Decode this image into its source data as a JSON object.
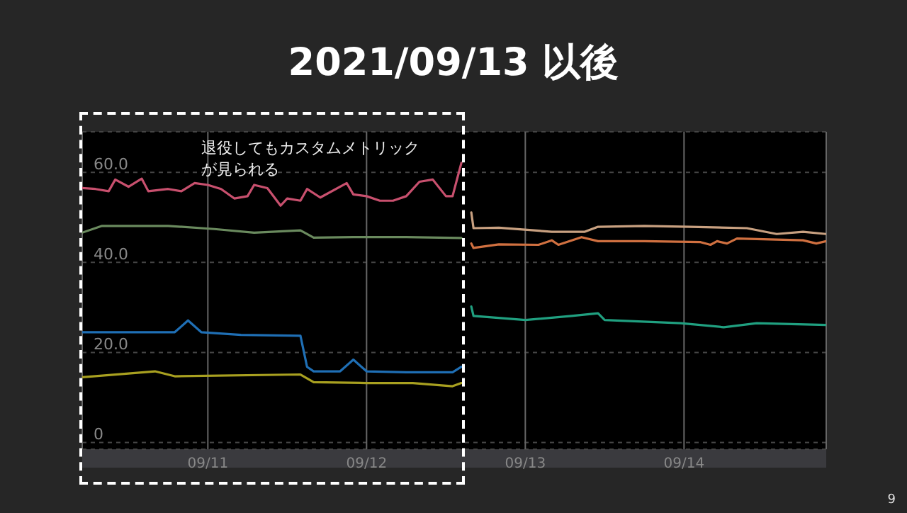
{
  "chart_data": {
    "type": "line",
    "title": "2021/09/13 以後",
    "annotations": [
      "退役してもカスタムメトリックが見られる",
      "9"
    ],
    "xlim": [
      "2021-09-10T05:00",
      "2021-09-14T21:30"
    ],
    "xticks": [
      {
        "value": "2021-09-11",
        "label": "09/11"
      },
      {
        "value": "2021-09-12",
        "label": "09/12"
      },
      {
        "value": "2021-09-13",
        "label": "09/13"
      },
      {
        "value": "2021-09-14",
        "label": "09/14"
      }
    ],
    "ylim": [
      -1.5,
      69
    ],
    "yticks": [
      {
        "value": 0,
        "label": "0"
      },
      {
        "value": 20,
        "label": "20.0"
      },
      {
        "value": 40,
        "label": "40.0"
      },
      {
        "value": 60,
        "label": "60.0"
      }
    ],
    "grid": true,
    "series": [
      {
        "color": "#c8506e",
        "x": [
          "2021-09-10T05:00",
          "2021-09-10T07:00",
          "2021-09-10T09:00",
          "2021-09-10T10:00",
          "2021-09-10T12:00",
          "2021-09-10T14:00",
          "2021-09-10T15:00",
          "2021-09-10T18:00",
          "2021-09-10T20:00",
          "2021-09-10T22:00",
          "2021-09-11T00:00",
          "2021-09-11T02:00",
          "2021-09-11T04:00",
          "2021-09-11T06:00",
          "2021-09-11T07:00",
          "2021-09-11T09:00",
          "2021-09-11T11:00",
          "2021-09-11T12:00",
          "2021-09-11T14:00",
          "2021-09-11T15:00",
          "2021-09-11T17:00",
          "2021-09-11T21:00",
          "2021-09-11T22:00",
          "2021-09-12T00:00",
          "2021-09-12T02:00",
          "2021-09-12T04:00",
          "2021-09-12T06:00",
          "2021-09-12T08:00",
          "2021-09-12T10:00",
          "2021-09-12T12:00",
          "2021-09-12T13:00",
          "2021-09-12T14:20"
        ],
        "values": [
          56.5,
          56.3,
          55.8,
          58.4,
          56.8,
          58.6,
          55.8,
          56.3,
          55.8,
          57.6,
          57.2,
          56.3,
          54.2,
          54.7,
          57.2,
          56.5,
          52.6,
          54.2,
          53.7,
          56.3,
          54.4,
          57.6,
          55.1,
          54.7,
          53.7,
          53.7,
          54.7,
          57.9,
          58.4,
          54.7,
          54.7,
          62.1
        ]
      },
      {
        "color": "#6a8a5e",
        "x": [
          "2021-09-10T05:00",
          "2021-09-10T08:00",
          "2021-09-10T14:00",
          "2021-09-10T18:00",
          "2021-09-11T01:00",
          "2021-09-11T07:00",
          "2021-09-11T14:00",
          "2021-09-11T16:00",
          "2021-09-11T22:00",
          "2021-09-12T06:00",
          "2021-09-12T14:20"
        ],
        "values": [
          46.6,
          48.1,
          48.1,
          48.1,
          47.4,
          46.6,
          47.1,
          45.5,
          45.6,
          45.6,
          45.4
        ]
      },
      {
        "color": "#1f6fb5",
        "x": [
          "2021-09-10T05:00",
          "2021-09-10T19:00",
          "2021-09-10T21:00",
          "2021-09-10T23:00",
          "2021-09-11T05:00",
          "2021-09-11T14:00",
          "2021-09-11T15:00",
          "2021-09-11T16:00",
          "2021-09-11T20:00",
          "2021-09-11T22:00",
          "2021-09-12T00:00",
          "2021-09-12T06:00",
          "2021-09-12T13:00",
          "2021-09-12T14:20"
        ],
        "values": [
          24.5,
          24.5,
          27.1,
          24.5,
          23.9,
          23.7,
          16.8,
          15.8,
          15.8,
          18.4,
          15.8,
          15.6,
          15.6,
          16.8
        ]
      },
      {
        "color": "#a8a020",
        "x": [
          "2021-09-10T05:00",
          "2021-09-10T16:00",
          "2021-09-10T19:00",
          "2021-09-11T14:00",
          "2021-09-11T16:00",
          "2021-09-12T00:00",
          "2021-09-12T07:00",
          "2021-09-12T13:00",
          "2021-09-12T14:20"
        ],
        "values": [
          14.5,
          15.8,
          14.7,
          15.1,
          13.4,
          13.2,
          13.2,
          12.5,
          13.2
        ]
      },
      {
        "color": "#c8a080",
        "x": [
          "2021-09-12T15:50",
          "2021-09-12T16:10",
          "2021-09-12T20:00",
          "2021-09-13T04:00",
          "2021-09-13T09:00",
          "2021-09-13T11:00",
          "2021-09-13T18:00",
          "2021-09-14T01:00",
          "2021-09-14T09:30",
          "2021-09-14T14:00",
          "2021-09-14T18:00",
          "2021-09-14T21:30"
        ],
        "values": [
          51.1,
          47.6,
          47.7,
          46.8,
          46.8,
          47.9,
          48.1,
          47.9,
          47.6,
          46.3,
          46.8,
          46.3
        ]
      },
      {
        "color": "#d07040",
        "x": [
          "2021-09-12T15:50",
          "2021-09-12T16:10",
          "2021-09-12T20:00",
          "2021-09-13T02:00",
          "2021-09-13T04:00",
          "2021-09-13T05:00",
          "2021-09-13T08:30",
          "2021-09-13T11:00",
          "2021-09-13T18:00",
          "2021-09-14T02:30",
          "2021-09-14T04:00",
          "2021-09-14T05:00",
          "2021-09-14T06:30",
          "2021-09-14T08:00",
          "2021-09-14T18:00",
          "2021-09-14T20:00",
          "2021-09-14T21:30"
        ],
        "values": [
          44.2,
          43.2,
          44.0,
          43.9,
          44.9,
          43.9,
          45.6,
          44.7,
          44.7,
          44.5,
          43.9,
          44.7,
          44.2,
          45.3,
          44.9,
          44.2,
          44.7
        ]
      },
      {
        "color": "#20a080",
        "x": [
          "2021-09-12T15:50",
          "2021-09-12T16:10",
          "2021-09-13T00:00",
          "2021-09-13T07:00",
          "2021-09-13T11:00",
          "2021-09-13T12:00",
          "2021-09-13T23:30",
          "2021-09-14T06:00",
          "2021-09-14T11:00",
          "2021-09-14T21:30"
        ],
        "values": [
          30.2,
          28.1,
          27.2,
          28.1,
          28.7,
          27.2,
          26.5,
          25.6,
          26.5,
          26.1
        ]
      }
    ]
  }
}
